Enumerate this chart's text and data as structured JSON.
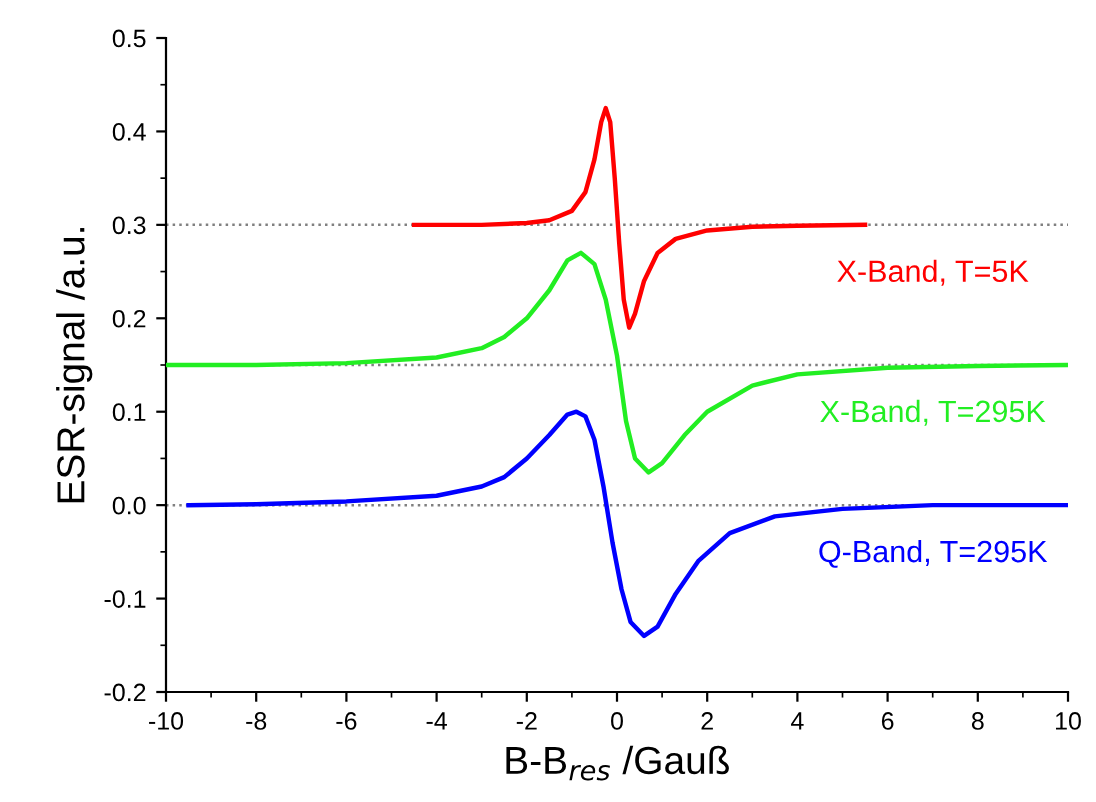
{
  "chart_data": {
    "type": "line",
    "xlabel": "B-B$_{res}$ /Gauß",
    "ylabel": "ESR-signal /a.u.",
    "xlim": [
      -10,
      10
    ],
    "xticks": [
      -10,
      -8,
      -6,
      -4,
      -2,
      0,
      2,
      4,
      6,
      8,
      10
    ],
    "ylim": [
      -0.2,
      0.5
    ],
    "yticks": [
      {
        "value": -0.2,
        "label": "-0.2"
      },
      {
        "value": -0.1,
        "label": "-0.1"
      },
      {
        "value": 0.0,
        "label": "0.0"
      },
      {
        "value": 0.1,
        "label": "0.1"
      },
      {
        "value": 0.2,
        "label": "0.2"
      },
      {
        "value": 0.3,
        "label": "0.3"
      },
      {
        "value": 0.4,
        "label": "0.4"
      },
      {
        "value": 0.5,
        "label": "0.5"
      }
    ],
    "grid": false,
    "legend": false,
    "marker": "none",
    "line_style": "solid",
    "ref_lines": [
      {
        "axis": "y",
        "value": 0.3,
        "color": "#808080",
        "line_style": "dotted"
      },
      {
        "axis": "y",
        "value": 0.15,
        "color": "#808080",
        "line_style": "dotted"
      },
      {
        "axis": "y",
        "value": 0.0,
        "color": "#808080",
        "line_style": "dotted"
      }
    ],
    "series": [
      {
        "name": "X-Band, T=5K",
        "color": "#ff0000",
        "x": [
          -4.5,
          -3,
          -2,
          -1.5,
          -1,
          -0.7,
          -0.5,
          -0.35,
          -0.25,
          -0.15,
          -0.05,
          0.05,
          0.15,
          0.27,
          0.4,
          0.6,
          0.9,
          1.3,
          2,
          3,
          4,
          5.5
        ],
        "values": [
          0.3,
          0.3,
          0.302,
          0.305,
          0.315,
          0.335,
          0.37,
          0.41,
          0.425,
          0.41,
          0.35,
          0.28,
          0.22,
          0.19,
          0.205,
          0.24,
          0.27,
          0.285,
          0.294,
          0.298,
          0.299,
          0.3
        ]
      },
      {
        "name": "X-Band, T=295K",
        "color": "#22ee22",
        "x": [
          -10,
          -8,
          -6,
          -4,
          -3,
          -2.5,
          -2,
          -1.5,
          -1.1,
          -0.8,
          -0.5,
          -0.25,
          0,
          0.2,
          0.4,
          0.7,
          1,
          1.5,
          2,
          3,
          4,
          6,
          8,
          10
        ],
        "values": [
          0.15,
          0.15,
          0.152,
          0.158,
          0.168,
          0.18,
          0.2,
          0.23,
          0.262,
          0.27,
          0.258,
          0.22,
          0.16,
          0.09,
          0.05,
          0.035,
          0.045,
          0.075,
          0.1,
          0.128,
          0.14,
          0.147,
          0.149,
          0.15
        ]
      },
      {
        "name": "Q-Band, T=295K",
        "color": "#0000ff",
        "x": [
          -9.5,
          -8,
          -6,
          -4,
          -3,
          -2.5,
          -2,
          -1.5,
          -1.1,
          -0.9,
          -0.7,
          -0.5,
          -0.3,
          -0.1,
          0.1,
          0.3,
          0.6,
          0.9,
          1.3,
          1.8,
          2.5,
          3.5,
          5,
          7,
          10
        ],
        "values": [
          0.0,
          0.001,
          0.004,
          0.01,
          0.02,
          0.03,
          0.05,
          0.075,
          0.097,
          0.1,
          0.095,
          0.07,
          0.02,
          -0.04,
          -0.09,
          -0.125,
          -0.14,
          -0.13,
          -0.095,
          -0.06,
          -0.03,
          -0.012,
          -0.004,
          0.0,
          0.0
        ]
      }
    ]
  }
}
